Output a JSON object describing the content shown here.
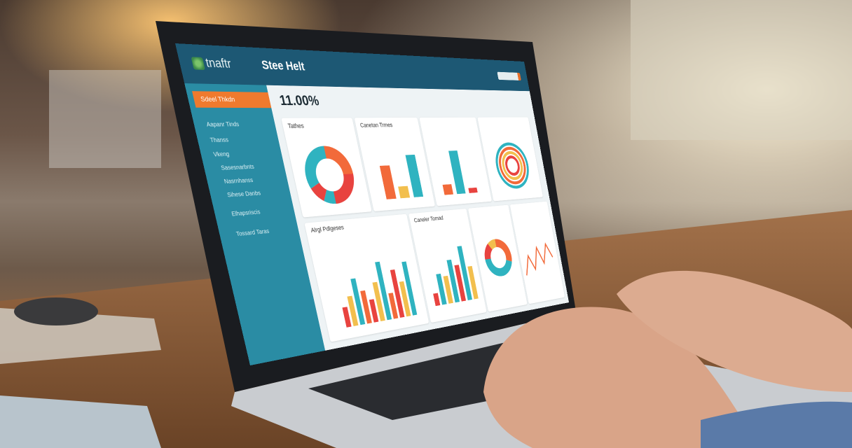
{
  "app": {
    "logo_text": "tnaftr",
    "title": "Stee Helt"
  },
  "sidebar": {
    "active_item": "Sdeel Thkdn",
    "items": [
      "Aapanr Tinds",
      "Thanss",
      "Vkeng",
      "Sasesnarbnts",
      "Nasrnhanss",
      "Sihese Danbs",
      "Elhapsriscis",
      "Tossard Taras"
    ]
  },
  "main": {
    "kpi_value": "11.00%"
  },
  "cards": [
    {
      "title": "Tathes",
      "chart": "donut"
    },
    {
      "title": "Canetan Trmes",
      "chart": "bar"
    },
    {
      "title": "",
      "chart": "bar"
    },
    {
      "title": "",
      "chart": "radial"
    },
    {
      "title": "Alrgl Pdlgeses",
      "chart": "grouped-bar"
    },
    {
      "title": "Caneler Tomad",
      "chart": "bar"
    },
    {
      "title": "",
      "chart": "donut"
    },
    {
      "title": "",
      "chart": "line"
    }
  ],
  "colors": {
    "header": "#1d5874",
    "sidebar": "#2a8ca4",
    "accent": "#ef7a2e",
    "teal": "#2fb3c0",
    "red": "#e8433f",
    "yellow": "#f2bf4e",
    "orange": "#f26a3a"
  },
  "decor": {
    "bars1": [
      0.62,
      0.22,
      0.8
    ],
    "bars2": [
      0.2,
      0.85,
      0.1
    ],
    "bars3": [
      0.3,
      0.45,
      0.7,
      0.5,
      0.35,
      0.6,
      0.9,
      0.4,
      0.75,
      0.55,
      0.85
    ],
    "bars4": [
      0.2,
      0.5,
      0.45,
      0.7,
      0.6,
      0.9,
      0.55
    ]
  }
}
